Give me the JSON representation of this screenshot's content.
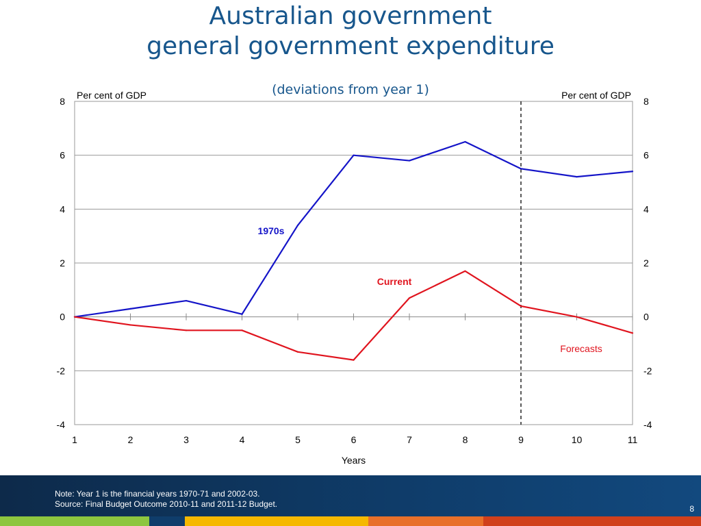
{
  "slide": {
    "title_line1": "Australian government",
    "title_line2": "general government expenditure",
    "subtitle": "(deviations from year 1)",
    "note_line1": "Note: Year 1 is the financial years 1970-71 and 2002-03.",
    "note_line2": "Source: Final Budget Outcome 2010-11 and 2011-12 Budget.",
    "page_number": "8"
  },
  "colors": {
    "title": "#17568c",
    "series_1970s": "#1414c8",
    "series_current": "#e0141e",
    "stripe_green": "#8dc63f",
    "stripe_blue": "#0f3d6b",
    "stripe_yellow": "#f5b800",
    "stripe_orange": "#e8702a",
    "stripe_red": "#d0401c"
  },
  "chart_data": {
    "type": "line",
    "xlabel": "Years",
    "ylabel_left": "Per cent of GDP",
    "ylabel_right": "Per cent of GDP",
    "x": [
      1,
      2,
      3,
      4,
      5,
      6,
      7,
      8,
      9,
      10,
      11
    ],
    "xticks": [
      "1",
      "2",
      "3",
      "4",
      "5",
      "6",
      "7",
      "8",
      "9",
      "10",
      "11"
    ],
    "xlim": [
      1,
      11
    ],
    "ylim": [
      -4,
      8
    ],
    "yticks": [
      "-4",
      "-2",
      "0",
      "2",
      "4",
      "6",
      "8"
    ],
    "grid": true,
    "forecast_start_x": 9,
    "forecast_label": "Forecasts",
    "series": [
      {
        "name": "1970s",
        "values": [
          0,
          0.3,
          0.6,
          0.1,
          3.4,
          6.0,
          5.8,
          6.5,
          5.5,
          5.2,
          5.4
        ]
      },
      {
        "name": "Current",
        "values": [
          0,
          -0.3,
          -0.5,
          -0.5,
          -1.3,
          -1.6,
          0.7,
          1.7,
          0.4,
          0,
          -0.6
        ]
      }
    ]
  }
}
